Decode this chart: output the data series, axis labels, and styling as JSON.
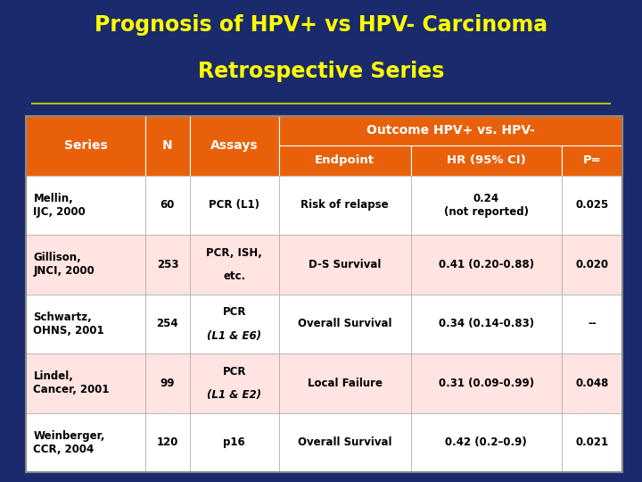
{
  "title_line1": "Prognosis of HPV+ vs HPV- Carcinoma",
  "title_line2": "Retrospective Series",
  "title_color": "#FFFF00",
  "background_color": "#1a2a6c",
  "header_orange": "#E8610A",
  "row_light": "#FFE4E1",
  "row_white": "#FFFFFF",
  "outcome_header": "Outcome HPV+ vs. HPV-",
  "rows": [
    {
      "series": "Mellin,\nIJC, 2000",
      "n": "60",
      "assays": "PCR (L1)",
      "assays_line2": "",
      "assays_italic": false,
      "endpoint": "Risk of relapse",
      "hr": "0.24\n(not reported)",
      "p": "0.025"
    },
    {
      "series": "Gillison,\nJNCI, 2000",
      "n": "253",
      "assays": "PCR, ISH,",
      "assays_line2": "etc.",
      "assays_italic": false,
      "endpoint": "D-S Survival",
      "hr": "0.41 (0.20-0.88)",
      "p": "0.020"
    },
    {
      "series": "Schwartz,\nOHNS, 2001",
      "n": "254",
      "assays": "PCR",
      "assays_line2": "(L1 & E6)",
      "assays_italic": true,
      "endpoint": "Overall Survival",
      "hr": "0.34 (0.14-0.83)",
      "p": "--"
    },
    {
      "series": "Lindel,\nCancer, 2001",
      "n": "99",
      "assays": "PCR",
      "assays_line2": "(L1 & E2)",
      "assays_italic": true,
      "endpoint": "Local Failure",
      "hr": "0.31 (0.09-0.99)",
      "p": "0.048"
    },
    {
      "series": "Weinberger,\nCCR, 2004",
      "n": "120",
      "assays": "p16",
      "assays_line2": "",
      "assays_italic": false,
      "endpoint": "Overall Survival",
      "hr": "0.42 (0.2–0.9)",
      "p": "0.021"
    }
  ]
}
